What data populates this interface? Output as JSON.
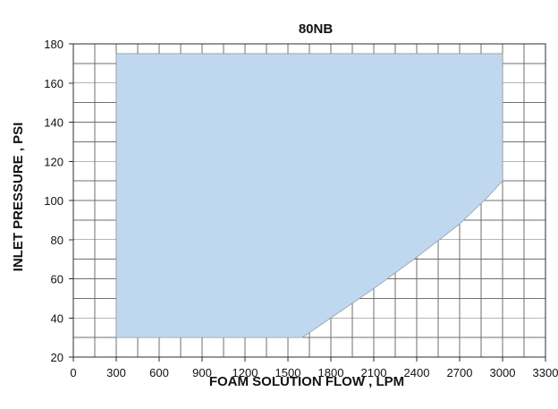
{
  "chart_data": {
    "type": "area",
    "title": "80NB",
    "xlabel": "FOAM SOLUTION FLOW , LPM",
    "ylabel": "INLET PRESSURE , PSI",
    "xlim": [
      0,
      3300
    ],
    "ylim": [
      20,
      180
    ],
    "x_ticks": [
      0,
      300,
      600,
      900,
      1200,
      1500,
      1800,
      2100,
      2400,
      2700,
      3000,
      3300
    ],
    "y_ticks": [
      20,
      40,
      60,
      80,
      100,
      120,
      140,
      160,
      180
    ],
    "x_tick_labels": [
      "0",
      "300",
      "600",
      "900",
      "1200",
      "1500",
      "1800",
      "2100",
      "2400",
      "2700",
      "3000",
      "3300"
    ],
    "y_tick_labels": [
      "20",
      "40",
      "60",
      "80",
      "100",
      "120",
      "140",
      "160",
      "180"
    ],
    "grid_x_step": 150,
    "grid_y_step": 10,
    "grid": true,
    "legend": "none",
    "fill_color": "#c0d8ef",
    "edge_color": "#9a9a9a",
    "grid_color": "#6f6f6f",
    "series": [
      {
        "upper_boundary": [
          {
            "x": 300,
            "y": 175
          },
          {
            "x": 3000,
            "y": 175
          }
        ],
        "lower_boundary": [
          {
            "x": 300,
            "y": 30
          },
          {
            "x": 1600,
            "y": 30
          },
          {
            "x": 1800,
            "y": 40
          },
          {
            "x": 2100,
            "y": 55
          },
          {
            "x": 2400,
            "y": 71
          },
          {
            "x": 2700,
            "y": 88
          },
          {
            "x": 2900,
            "y": 102
          },
          {
            "x": 3000,
            "y": 110
          }
        ]
      }
    ]
  }
}
